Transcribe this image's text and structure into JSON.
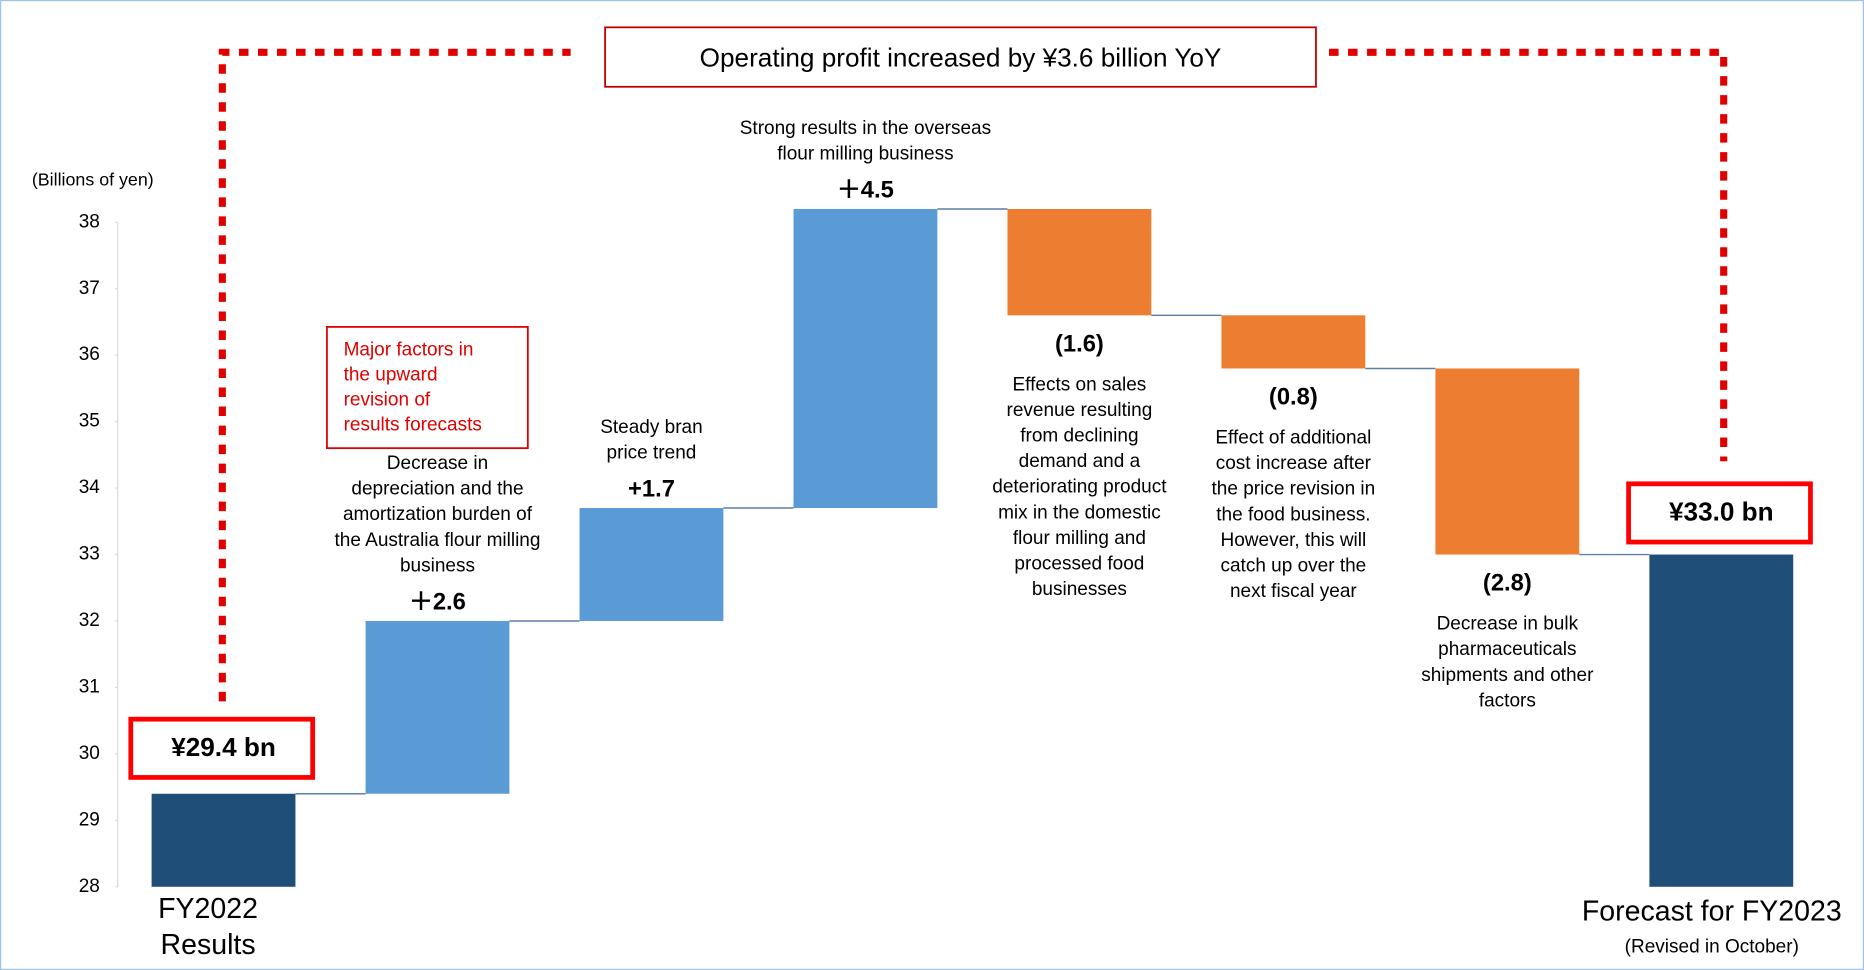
{
  "chart_data": {
    "type": "waterfall",
    "title": "Operating profit increased by ¥3.6 billion YoY",
    "y_axis_label": "(Billions of yen)",
    "callout": [
      "Major factors in",
      "the upward",
      "revision of",
      "results forecasts"
    ],
    "categories": [
      [
        "FY2022",
        "Results"
      ],
      null,
      null,
      null,
      null,
      null,
      null,
      [
        "Forecast for FY2023",
        "(Revised in October)"
      ]
    ],
    "measure": [
      "total",
      "relative",
      "relative",
      "relative",
      "relative",
      "relative",
      "relative",
      "total"
    ],
    "values": [
      29.4,
      2.6,
      1.7,
      4.5,
      -1.6,
      -0.8,
      -2.8,
      33.0
    ],
    "value_labels": [
      "¥29.4 bn",
      "＋2.6",
      "+1.7",
      "＋4.5",
      "(1.6)",
      "(0.8)",
      "(2.8)",
      "¥33.0 bn"
    ],
    "annotations": [
      null,
      [
        "Decrease in",
        "depreciation and the",
        "amortization burden of",
        "the Australia flour milling",
        "business"
      ],
      [
        "Steady bran",
        "price trend"
      ],
      [
        "Strong results in the overseas",
        "flour milling business"
      ],
      [
        "Effects on sales",
        "revenue resulting",
        "from declining",
        "demand and a",
        "deteriorating product",
        "mix in the domestic",
        "flour milling and",
        "processed food",
        "businesses"
      ],
      [
        "Effect of additional",
        "cost increase after",
        "the price revision in",
        "the food business.",
        "However, this will",
        "catch up over the",
        "next fiscal year"
      ],
      [
        "Decrease in bulk",
        "pharmaceuticals",
        "shipments and other",
        "factors"
      ],
      null
    ],
    "colors": {
      "total": "#1f4e79",
      "increase": "#5b9bd5",
      "decrease": "#ed7d31"
    },
    "ylim": [
      28,
      38
    ],
    "yticks": [
      28,
      29,
      30,
      31,
      32,
      33,
      34,
      35,
      36,
      37,
      38
    ]
  }
}
